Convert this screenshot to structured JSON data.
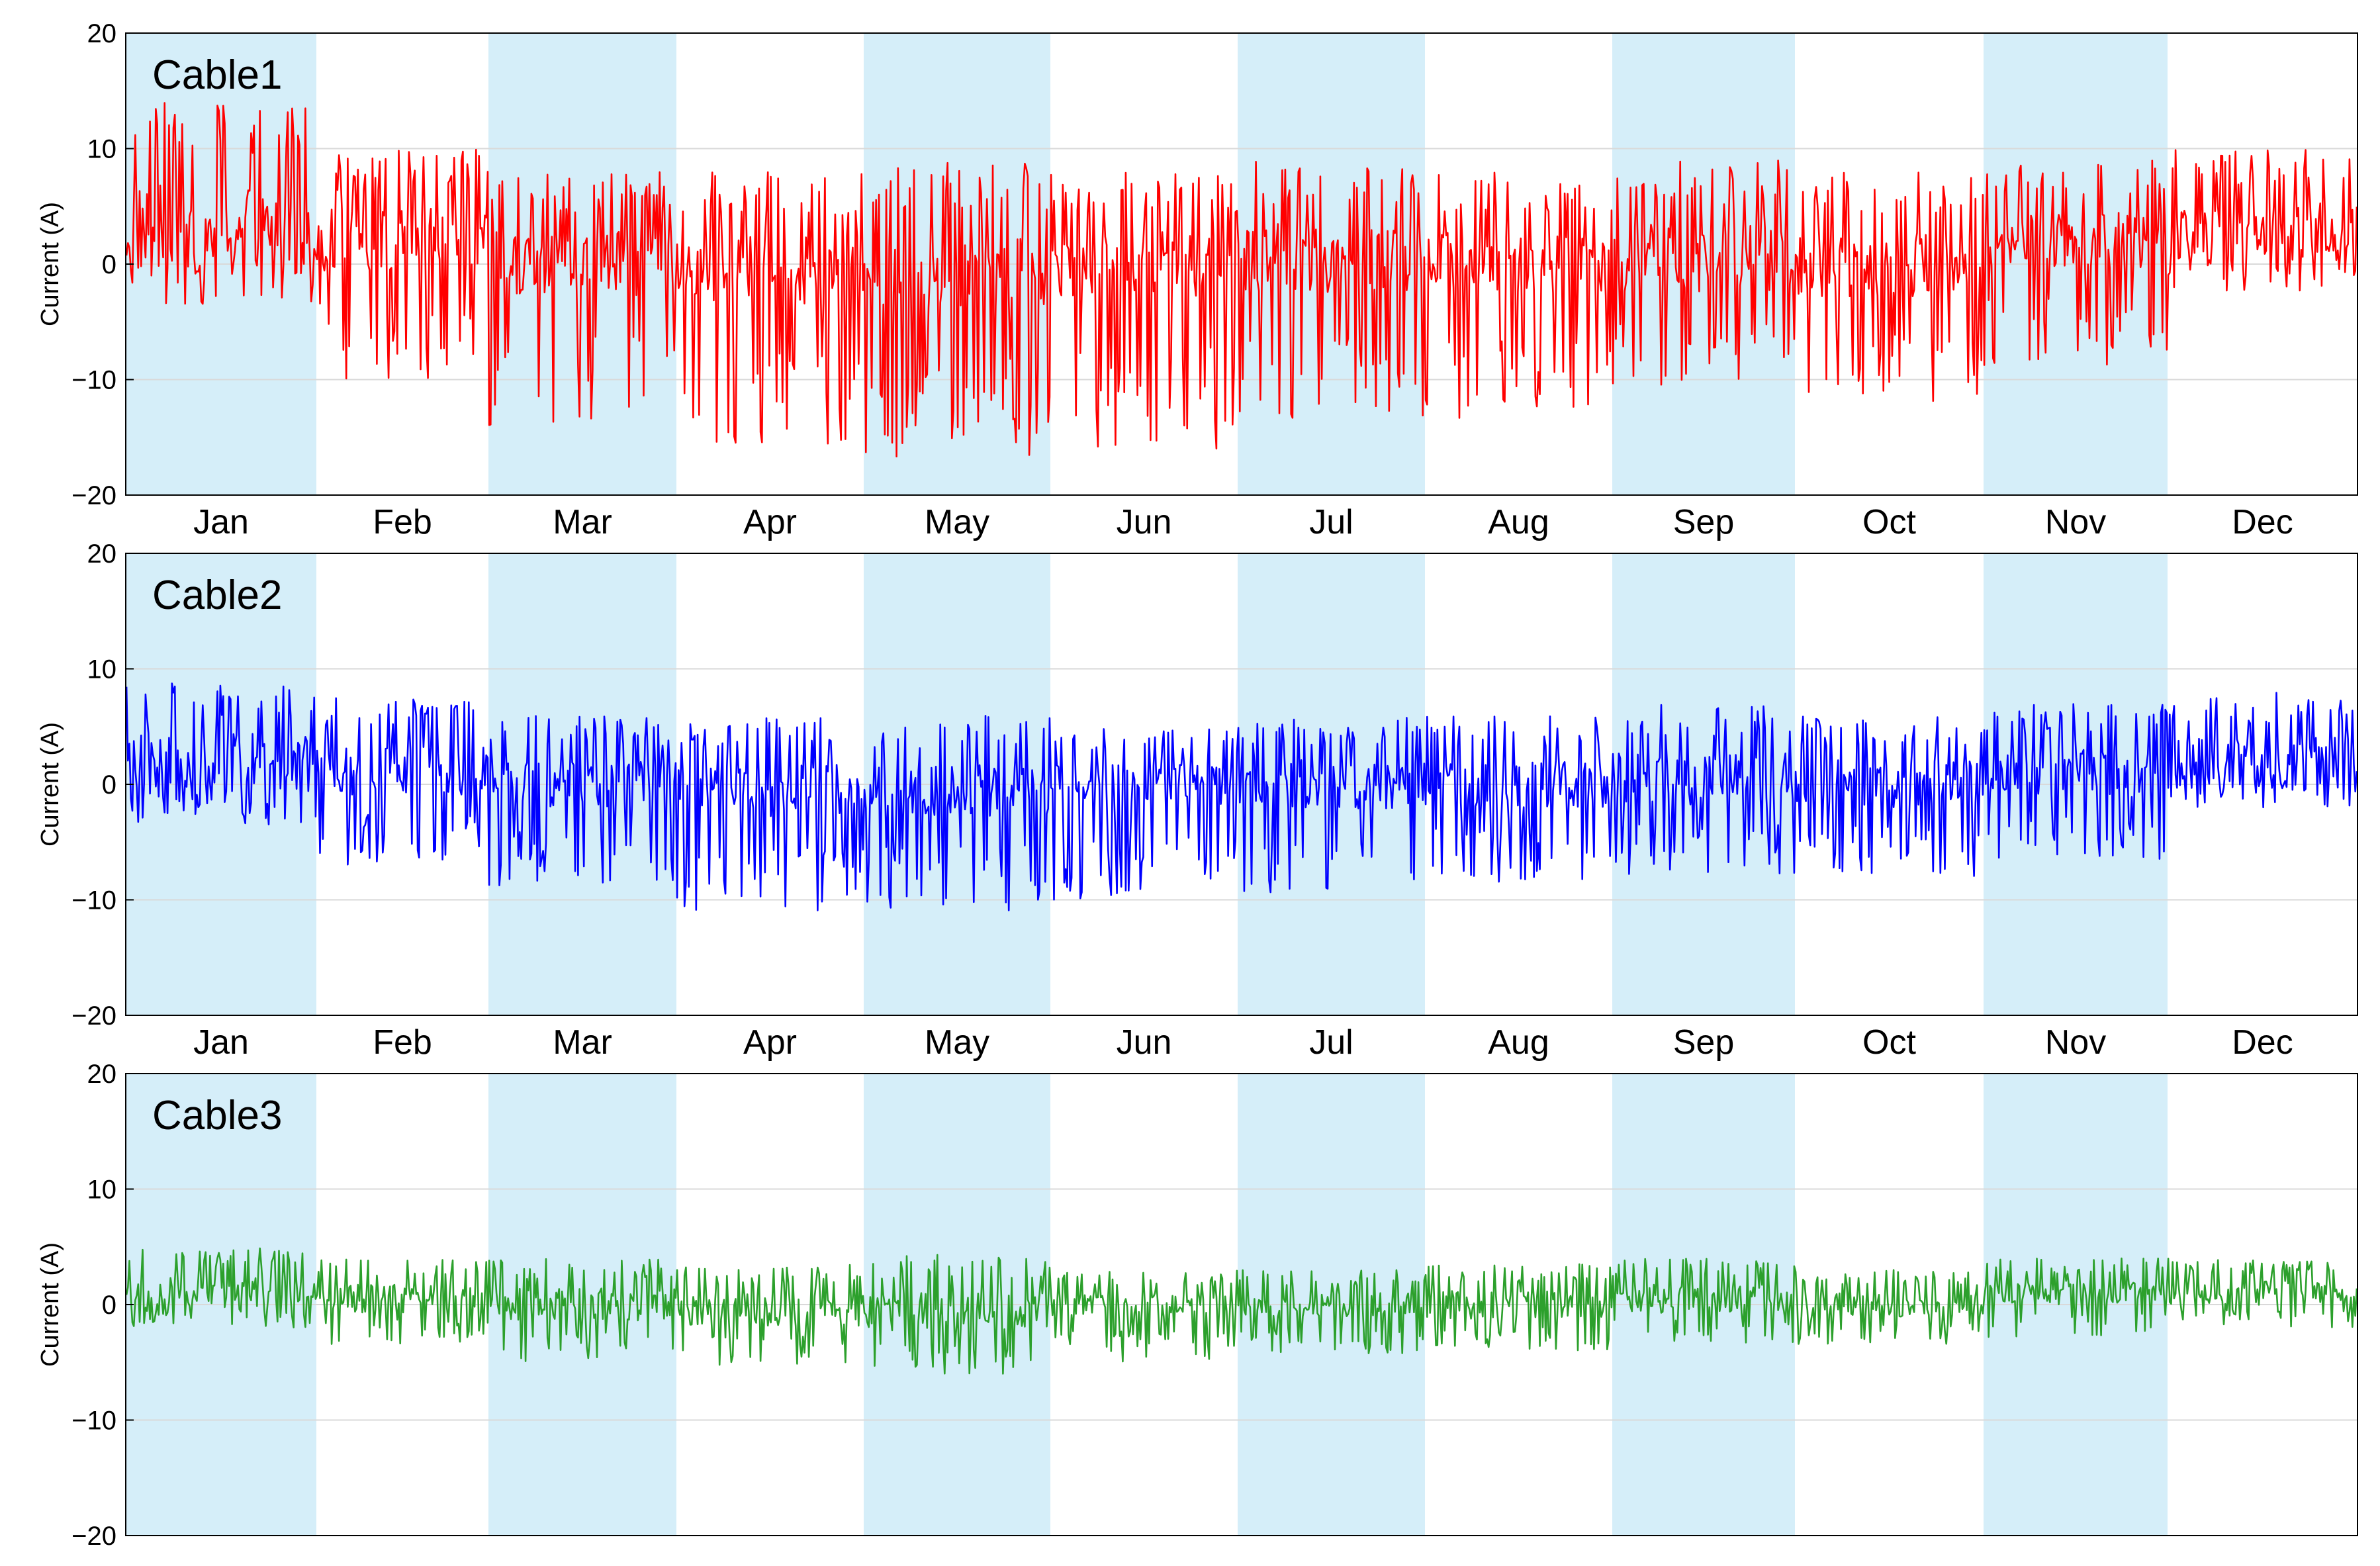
{
  "chart_data": [
    {
      "type": "line",
      "title": "Cable1",
      "xlabel": "",
      "ylabel": "Current (A)",
      "ylim": [
        -20,
        20
      ],
      "yticks": [
        "20",
        "10",
        "0",
        "−10",
        "−20"
      ],
      "month_labels": [
        "Jan",
        "Feb",
        "Mar",
        "Apr",
        "May",
        "Jun",
        "Jul",
        "Aug",
        "Sep",
        "Oct",
        "Nov",
        "Dec"
      ],
      "grid": true,
      "shaded_months": [
        "Jan",
        "Mar",
        "May",
        "Jul",
        "Sep",
        "Nov"
      ],
      "color": "#ff0000",
      "series": [
        {
          "x": [
            "Jan",
            "Feb",
            "Mar",
            "Apr",
            "May",
            "Jun",
            "Jul",
            "Aug",
            "Sep",
            "Oct",
            "Nov",
            "Dec"
          ],
          "max": [
            14,
            10,
            8,
            8,
            9,
            8,
            9,
            8,
            9,
            8,
            9,
            10
          ],
          "baseline": [
            3,
            2,
            0,
            -0.5,
            -0.5,
            0,
            0.5,
            0,
            0.5,
            0,
            2,
            3
          ],
          "min": [
            -3.5,
            -10,
            -14,
            -16.5,
            -17,
            -16,
            -13.5,
            -13.5,
            -11,
            -12.5,
            -9,
            -2.5
          ]
        }
      ]
    },
    {
      "type": "line",
      "title": "Cable2",
      "xlabel": "",
      "ylabel": "Current (A)",
      "ylim": [
        -20,
        20
      ],
      "yticks": [
        "20",
        "10",
        "0",
        "−10",
        "−20"
      ],
      "month_labels": [
        "Jan",
        "Feb",
        "Mar",
        "Apr",
        "May",
        "Jun",
        "Jul",
        "Aug",
        "Sep",
        "Oct",
        "Nov",
        "Dec"
      ],
      "grid": true,
      "shaded_months": [
        "Jan",
        "Mar",
        "May",
        "Jul",
        "Sep",
        "Nov"
      ],
      "color": "#0000ff",
      "series": [
        {
          "x": [
            "Jan",
            "Feb",
            "Mar",
            "Apr",
            "May",
            "Jun",
            "Jul",
            "Aug",
            "Sep",
            "Oct",
            "Nov",
            "Dec"
          ],
          "max": [
            9,
            7.5,
            6,
            6,
            6,
            5,
            6,
            6,
            7,
            6,
            7,
            8
          ],
          "baseline": [
            2,
            1,
            0,
            -0.5,
            -0.5,
            0,
            0,
            0,
            0.5,
            0,
            1,
            2
          ],
          "min": [
            -3.5,
            -7,
            -9,
            -11,
            -11,
            -10,
            -9.5,
            -8.5,
            -8,
            -8,
            -6.5,
            -2
          ]
        }
      ]
    },
    {
      "type": "line",
      "title": "Cable3",
      "xlabel": "",
      "ylabel": "Current (A)",
      "ylim": [
        -20,
        20
      ],
      "yticks": [
        "20",
        "10",
        "0",
        "−10",
        "−20"
      ],
      "month_labels": [],
      "grid": true,
      "shaded_months": [
        "Jan",
        "Mar",
        "May",
        "Jul",
        "Sep",
        "Nov"
      ],
      "color": "#2ca02c",
      "series": [
        {
          "x": [
            "Jan",
            "Feb",
            "Mar",
            "Apr",
            "May",
            "Jun",
            "Jul",
            "Aug",
            "Sep",
            "Oct",
            "Nov",
            "Dec"
          ],
          "max": [
            5,
            4,
            4,
            3.5,
            4.5,
            3,
            3,
            3.5,
            4,
            3,
            4,
            4
          ],
          "baseline": [
            1,
            0.5,
            0,
            -0.5,
            -0.5,
            0,
            0,
            0,
            0.5,
            0,
            1,
            1
          ],
          "min": [
            -2,
            -3.5,
            -5,
            -5.5,
            -6,
            -5,
            -4.5,
            -4,
            -3.5,
            -3.5,
            -3,
            -2
          ]
        }
      ]
    }
  ]
}
